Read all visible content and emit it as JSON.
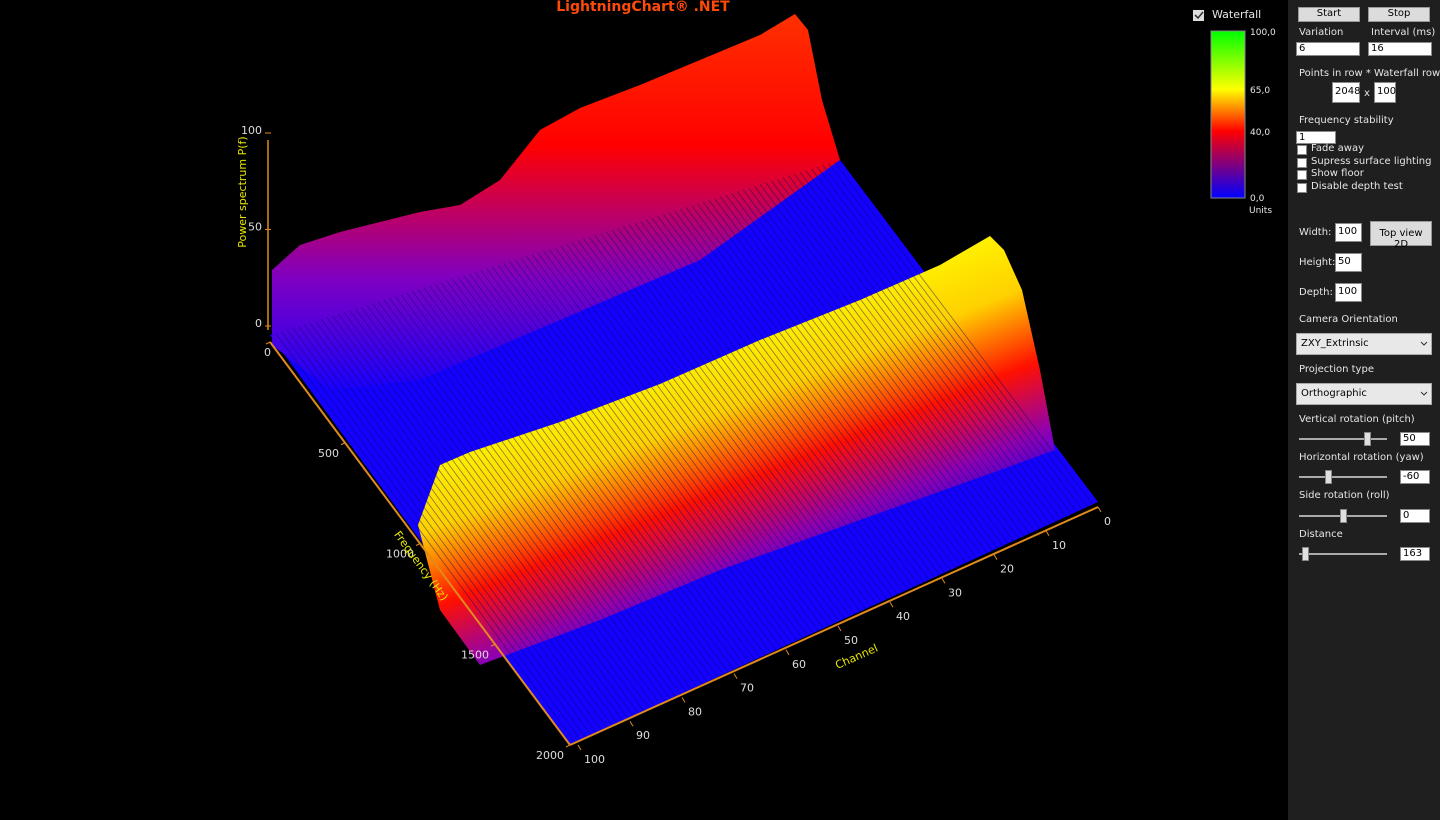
{
  "chart": {
    "title": "LightningChart® .NET",
    "y_axis": {
      "label": "Power spectrum P(f)",
      "ticks": [
        "100",
        "50",
        "0"
      ]
    },
    "freq_axis": {
      "label": "Frequency (Hz)",
      "ticks": [
        "0",
        "500",
        "1000",
        "1500",
        "2000"
      ]
    },
    "channel_axis": {
      "label": "Channel",
      "ticks": [
        "0",
        "10",
        "20",
        "30",
        "40",
        "50",
        "60",
        "70",
        "80",
        "90",
        "100"
      ]
    },
    "legend": {
      "title": "Waterfall",
      "labels": [
        "100,0",
        "65,0",
        "40,0",
        "0,0"
      ],
      "units": "Units"
    }
  },
  "controls": {
    "start": "Start",
    "stop": "Stop",
    "variation": {
      "label": "Variation",
      "value": "6"
    },
    "interval": {
      "label": "Interval (ms)",
      "value": "16"
    },
    "points": {
      "label": "Points in row * Waterfall rows",
      "row_points": "2048",
      "times": "x",
      "rows": "100"
    },
    "stability": {
      "label": "Frequency stability",
      "value": "1"
    },
    "checkboxes": [
      "Fade away",
      "Supress surface lighting",
      "Show floor",
      "Disable depth test"
    ],
    "width": {
      "label": "Width:",
      "value": "100"
    },
    "top_view": "Top view 2D",
    "height": {
      "label": "Height:",
      "value": "50"
    },
    "depth": {
      "label": "Depth:",
      "value": "100"
    },
    "camera": {
      "label": "Camera Orientation",
      "value": "ZXY_Extrinsic"
    },
    "projection": {
      "label": "Projection type",
      "value": "Orthographic"
    },
    "pitch": {
      "label": "Vertical rotation (pitch)",
      "value": "50"
    },
    "yaw": {
      "label": "Horizontal rotation (yaw)",
      "value": "-60"
    },
    "roll": {
      "label": "Side rotation (roll)",
      "value": "0"
    },
    "distance": {
      "label": "Distance",
      "value": "163"
    }
  }
}
